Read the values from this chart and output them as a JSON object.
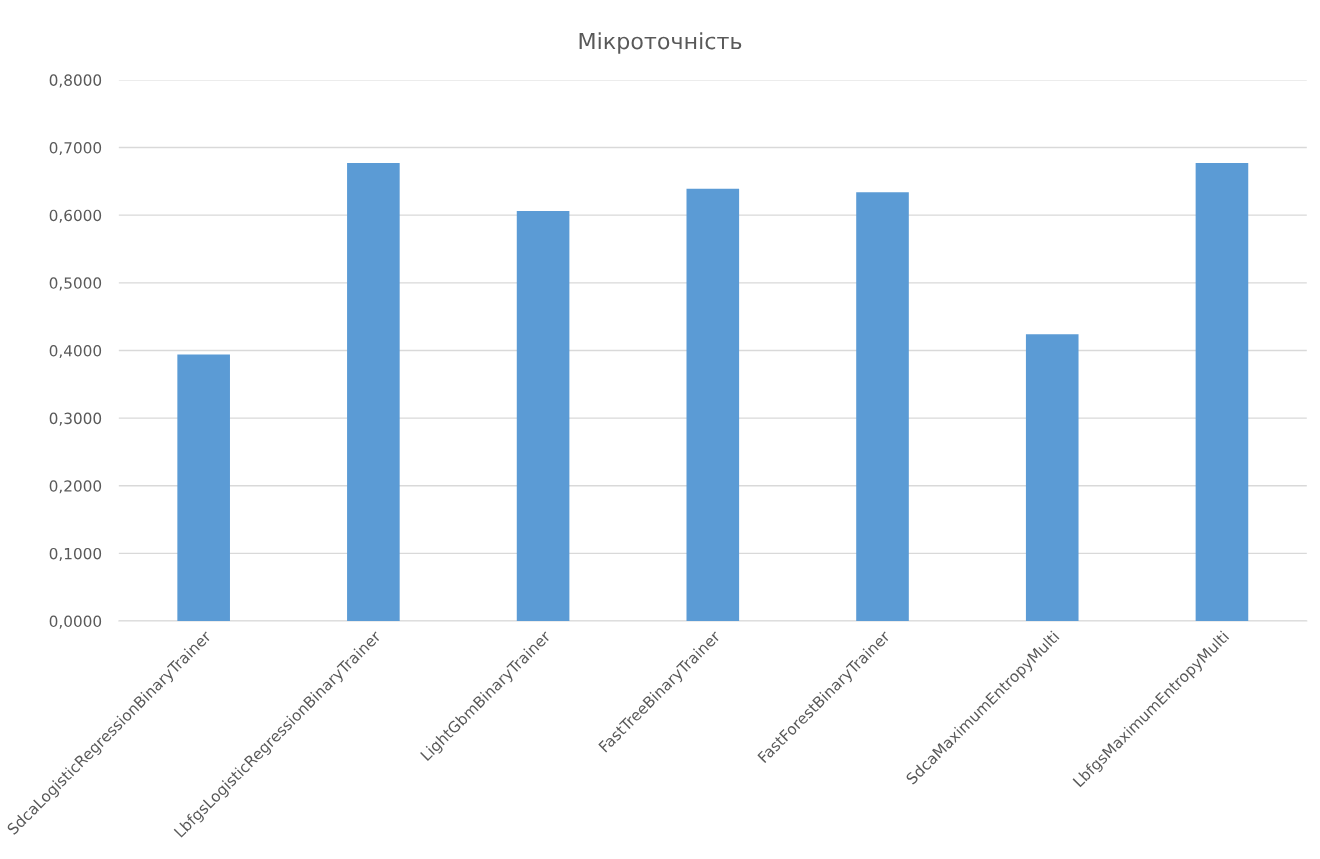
{
  "chart_data": {
    "type": "bar",
    "title": "Мікроточність",
    "categories": [
      "SdcaLogisticRegressionBinaryTrainer",
      "LbfgsLogisticRegressionBinaryTrainer",
      "LightGbmBinaryTrainer",
      "FastTreeBinaryTrainer",
      "FastForestBinaryTrainer",
      "SdcaMaximumEntropyMulti",
      "LbfgsMaximumEntropyMulti"
    ],
    "values": [
      0.394,
      0.677,
      0.606,
      0.639,
      0.634,
      0.424,
      0.677
    ],
    "color": "#5b9bd5",
    "ylim": [
      0,
      0.8
    ],
    "yticks": [
      {
        "value": 0,
        "label": "0,0000"
      },
      {
        "value": 0.1,
        "label": "0,1000"
      },
      {
        "value": 0.2,
        "label": "0,2000"
      },
      {
        "value": 0.3,
        "label": "0,3000"
      },
      {
        "value": 0.4,
        "label": "0,4000"
      },
      {
        "value": 0.5,
        "label": "0,5000"
      },
      {
        "value": 0.6,
        "label": "0,6000"
      },
      {
        "value": 0.7,
        "label": "0,7000"
      },
      {
        "value": 0.8,
        "label": "0,8000"
      }
    ],
    "grid": "y"
  }
}
